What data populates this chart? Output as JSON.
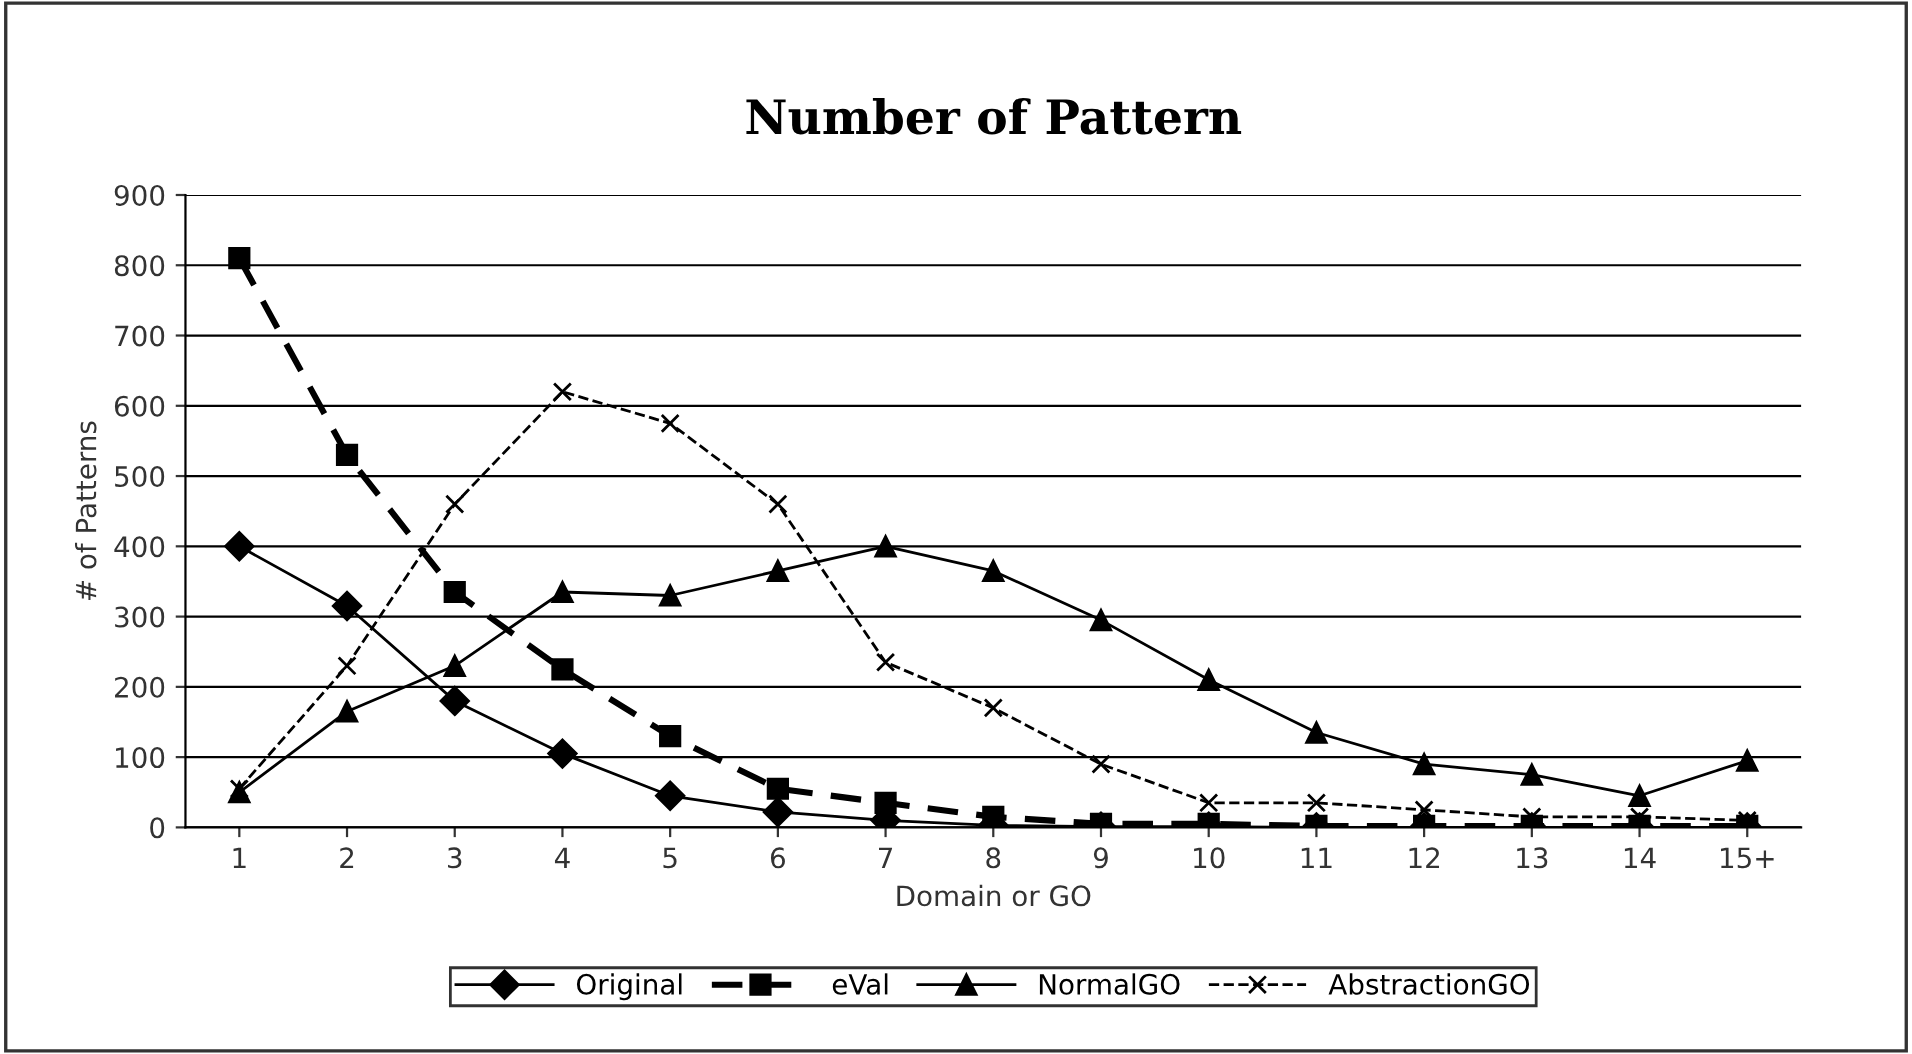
{
  "chart_data": {
    "type": "line",
    "title": "Number of Pattern",
    "xlabel": "Domain or GO",
    "ylabel": "# of Patterns",
    "categories": [
      "1",
      "2",
      "3",
      "4",
      "5",
      "6",
      "7",
      "8",
      "9",
      "10",
      "11",
      "12",
      "13",
      "14",
      "15+"
    ],
    "series": [
      {
        "name": "Original",
        "color": "#000000",
        "marker": "diamond",
        "line_style": "solid",
        "values": [
          400,
          315,
          180,
          105,
          45,
          22,
          10,
          3,
          1,
          1,
          0,
          0,
          0,
          0,
          0
        ]
      },
      {
        "name": "eVal",
        "color": "#000000",
        "marker": "square",
        "line_style": "dashed",
        "values": [
          810,
          530,
          335,
          225,
          130,
          55,
          35,
          15,
          5,
          5,
          2,
          2,
          2,
          2,
          2
        ]
      },
      {
        "name": "NormalGO",
        "color": "#000000",
        "marker": "triangle",
        "line_style": "solid",
        "values": [
          50,
          165,
          230,
          335,
          330,
          365,
          400,
          365,
          295,
          210,
          135,
          90,
          75,
          45,
          95
        ]
      },
      {
        "name": "AbstractionGO",
        "color": "#000000",
        "marker": "cross",
        "line_style": "dashed",
        "values": [
          55,
          230,
          460,
          620,
          575,
          460,
          235,
          170,
          90,
          35,
          35,
          25,
          15,
          15,
          10
        ]
      }
    ],
    "ylim": [
      0,
      900
    ],
    "yticks": [
      0,
      100,
      200,
      300,
      400,
      500,
      600,
      700,
      800,
      900
    ],
    "grid": "y",
    "legend": "bottom"
  }
}
